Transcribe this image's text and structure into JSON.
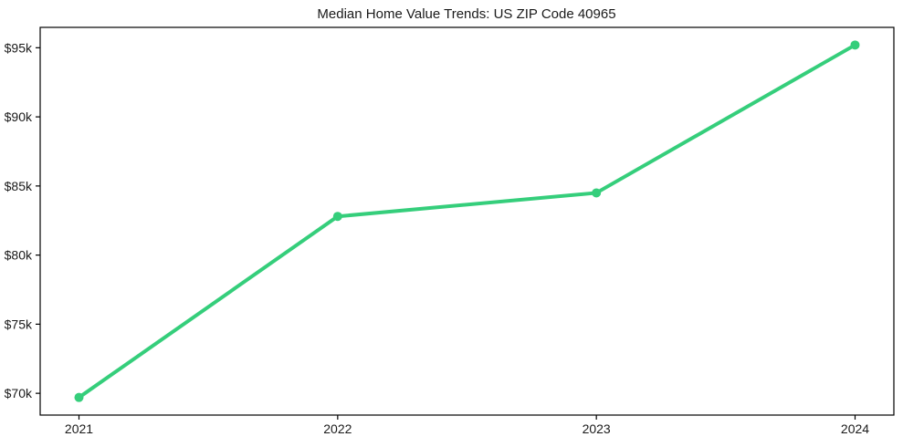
{
  "figure": {
    "background_color": "#ffffff",
    "text_color": "#1a1a1a",
    "spine_color": "#000000"
  },
  "chart_data": {
    "type": "line",
    "title": "Median Home Value Trends: US ZIP Code 40965",
    "xlabel": "",
    "ylabel": "",
    "x": [
      2021,
      2022,
      2023,
      2024
    ],
    "series": [
      {
        "name": "Median Home Value",
        "values": [
          69700,
          82800,
          84500,
          95200
        ]
      }
    ],
    "x_tick_labels": [
      "2021",
      "2022",
      "2023",
      "2024"
    ],
    "y_ticks": [
      70000,
      75000,
      80000,
      85000,
      90000,
      95000
    ],
    "y_tick_labels": [
      "$70k",
      "$75k",
      "$80k",
      "$85k",
      "$90k",
      "$95k"
    ],
    "xlim": [
      2020.85,
      2024.15
    ],
    "ylim": [
      68425,
      96475
    ],
    "grid": false,
    "legend_position": "none",
    "line_color": "#35ce7b",
    "marker": "circle",
    "line_width": 4,
    "marker_radius": 5
  }
}
